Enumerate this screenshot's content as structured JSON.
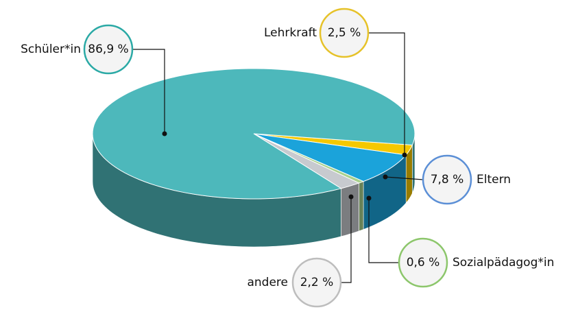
{
  "chart_data": {
    "type": "pie",
    "categories": [
      "Schüler*in",
      "Lehrkraft",
      "Eltern",
      "Sozialpädagog*in",
      "andere"
    ],
    "values": [
      86.9,
      2.5,
      7.8,
      0.6,
      2.2
    ],
    "value_labels": [
      "86,9 %",
      "2,5 %",
      "7,8 %",
      "0,6 %",
      "2,2 %"
    ],
    "colors": [
      "#4db8bb",
      "#f5c800",
      "#1ba3da",
      "#a9d18e",
      "#c7cacf"
    ]
  }
}
